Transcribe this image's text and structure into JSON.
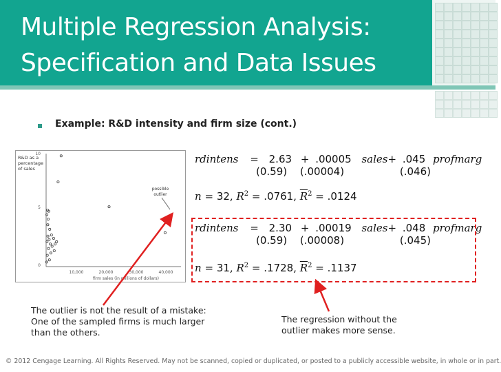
{
  "slide": {
    "title_line1": "Multiple Regression Analysis:",
    "title_line2": "Specification and Data Issues",
    "bullet": "Example: R&D intensity and firm size (cont.)"
  },
  "plot": {
    "ylabel_lines": [
      "R&D as a",
      "percentage",
      "of sales"
    ],
    "y_ticks": [
      "10",
      "5",
      "0"
    ],
    "x_ticks": [
      "10,000",
      "20,000",
      "30,000",
      "40,000"
    ],
    "xlabel": "firm sales (in millions of dollars)",
    "annotation_lines": [
      "possible",
      "outlier"
    ]
  },
  "chart_data": {
    "type": "scatter",
    "xlabel": "firm sales (in millions of dollars)",
    "ylabel": "R&D as a percentage of sales",
    "xlim": [
      0,
      45000
    ],
    "ylim": [
      0,
      10
    ],
    "points": [
      {
        "x": 250,
        "y": 4.6
      },
      {
        "x": 450,
        "y": 5.0
      },
      {
        "x": 700,
        "y": 4.2
      },
      {
        "x": 900,
        "y": 4.9
      },
      {
        "x": 550,
        "y": 3.7
      },
      {
        "x": 1200,
        "y": 3.3
      },
      {
        "x": 600,
        "y": 2.7
      },
      {
        "x": 1000,
        "y": 2.4
      },
      {
        "x": 1800,
        "y": 2.8
      },
      {
        "x": 300,
        "y": 2.2
      },
      {
        "x": 1400,
        "y": 2.0
      },
      {
        "x": 2500,
        "y": 2.5
      },
      {
        "x": 800,
        "y": 1.6
      },
      {
        "x": 2000,
        "y": 1.8
      },
      {
        "x": 3000,
        "y": 2.0
      },
      {
        "x": 1600,
        "y": 1.2
      },
      {
        "x": 400,
        "y": 1.0
      },
      {
        "x": 2700,
        "y": 1.4
      },
      {
        "x": 3500,
        "y": 2.2
      },
      {
        "x": 1100,
        "y": 0.6
      },
      {
        "x": 200,
        "y": 0.4
      },
      {
        "x": 4000,
        "y": 7.5
      },
      {
        "x": 5000,
        "y": 9.8
      },
      {
        "x": 21000,
        "y": 5.3
      },
      {
        "x": 39700,
        "y": 3.0
      }
    ]
  },
  "equations": {
    "eq1_dep": "rdintens",
    "eq1_rhs_const": "2.63",
    "eq1_rhs_coef1": ".00005",
    "eq1_var1": "sales",
    "eq1_coef2": ".045",
    "eq1_var2": "profmarg",
    "eq1_se_const": "(0.59)",
    "eq1_se1": "(.00004)",
    "eq1_se2": "(.046)",
    "eq1_stats_n": "32",
    "eq1_stats_r2": ".0761",
    "eq1_stats_adjr2": ".0124",
    "eq2_dep": "rdintens",
    "eq2_rhs_const": "2.30",
    "eq2_rhs_coef1": ".00019",
    "eq2_var1": "sales",
    "eq2_coef2": ".048",
    "eq2_var2": "profmarg",
    "eq2_se_const": "(0.59)",
    "eq2_se1": "(.00008)",
    "eq2_se2": "(.045)",
    "eq2_stats_n": "31",
    "eq2_stats_r2": ".1728",
    "eq2_stats_adjr2": ".1137"
  },
  "notes": {
    "left_lines": [
      "The outlier is not the result of a mistake:",
      "One of the sampled firms is much larger",
      "than the others."
    ],
    "right_lines": [
      "The regression without the",
      "outlier makes more sense."
    ]
  },
  "footer": "© 2012 Cengage Learning. All Rights Reserved. May not be scanned, copied or duplicated, or posted to a publicly accessible website, in whole or in part.",
  "colors": {
    "header": "#12a590",
    "arrow": "#e02020",
    "box": "#e02020"
  }
}
